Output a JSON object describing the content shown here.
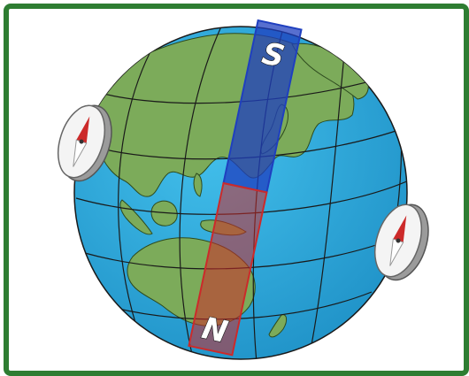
{
  "diagram": {
    "bar_magnet": {
      "top_pole": {
        "label": "S",
        "color": "#1f3fbf"
      },
      "bottom_pole": {
        "label": "N",
        "color": "#cc2a2a"
      }
    },
    "colors": {
      "border": "#2e7d32",
      "ocean": "#2aa6d8",
      "land": "#7cab5a",
      "grid": "#1a1a1a"
    },
    "compasses": [
      {
        "name": "left-compass",
        "needle_north_color": "#cc2a2a"
      },
      {
        "name": "right-compass",
        "needle_north_color": "#cc2a2a"
      }
    ]
  }
}
